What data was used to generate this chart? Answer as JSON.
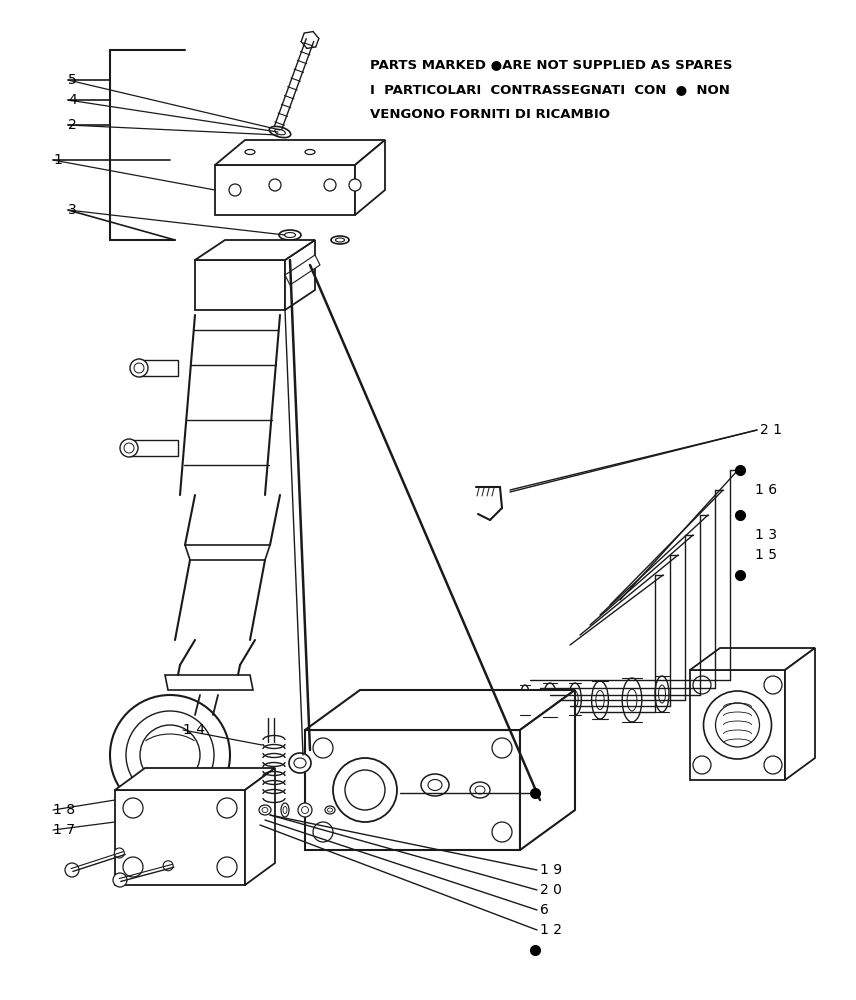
{
  "background_color": "#ffffff",
  "line_color": "#1a1a1a",
  "text_color": "#000000",
  "notice_line1": "PARTS MARKED ●ARE NOT SUPPLIED AS SPARES",
  "notice_line2": "I  PARTICOLARI  CONTRASSEGNATI  CON  ●  NON",
  "notice_line3": "VENGONO FORNITI DI RICAMBIO",
  "fig_w": 8.56,
  "fig_h": 10.0,
  "dpi": 100
}
